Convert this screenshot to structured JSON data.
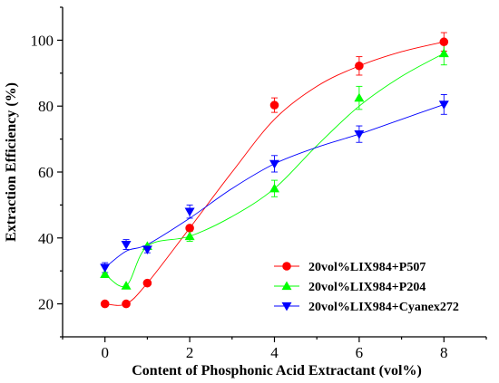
{
  "chart_data": {
    "type": "scatter",
    "title": "",
    "xlabel": "Content of Phosphonic Acid Extractant (vol%)",
    "ylabel": "Extraction Efficiency (%)",
    "xlim": [
      -1,
      9
    ],
    "ylim": [
      10,
      110
    ],
    "xticks": [
      0,
      2,
      4,
      6,
      8
    ],
    "yticks": [
      20,
      40,
      60,
      80,
      100
    ],
    "grid": false,
    "legend_position": "bottom-right",
    "series": [
      {
        "name": "20vol%LIX984+P507",
        "color": "#ff0000",
        "marker": "circle",
        "x": [
          0,
          0.5,
          1,
          2,
          4,
          6,
          8
        ],
        "y": [
          20,
          20,
          26.3,
          43,
          80.3,
          92.2,
          99.5
        ],
        "err": [
          0,
          0,
          0,
          0,
          2.2,
          2.8,
          2.8
        ],
        "fit_x": [
          0,
          0.5,
          1,
          2,
          3,
          4,
          5,
          6,
          7,
          8
        ],
        "fit_y": [
          20,
          20,
          26.3,
          43,
          60,
          76,
          86,
          92.2,
          96.5,
          99.5
        ]
      },
      {
        "name": "20vol%LIX984+P204",
        "color": "#00ff00",
        "marker": "triangle-up",
        "x": [
          0,
          0.5,
          1,
          2,
          4,
          6,
          8
        ],
        "y": [
          29,
          25.5,
          37.5,
          40.5,
          55,
          82.5,
          96
        ],
        "err": [
          0,
          0,
          0,
          1.5,
          2.5,
          3.5,
          3.5
        ],
        "fit_x": [
          0,
          0.5,
          1,
          2,
          3,
          4,
          5,
          6,
          7,
          8
        ],
        "fit_y": [
          29,
          25.5,
          37.5,
          40.5,
          46.5,
          55,
          68,
          80,
          89,
          96
        ]
      },
      {
        "name": "20vol%LIX984+Cyanex272",
        "color": "#0000ff",
        "marker": "triangle-down",
        "x": [
          0,
          0.5,
          1,
          2,
          4,
          6,
          8
        ],
        "y": [
          31,
          38,
          36.5,
          48,
          62.5,
          71.5,
          80.5
        ],
        "err": [
          1.5,
          1.5,
          1,
          2,
          2.5,
          2.5,
          3
        ],
        "fit_x": [
          0,
          0.5,
          1,
          2,
          3,
          4,
          5,
          6,
          7,
          8
        ],
        "fit_y": [
          31,
          36,
          38,
          46,
          55,
          62.5,
          67.5,
          71.5,
          76,
          80.5
        ]
      }
    ]
  }
}
